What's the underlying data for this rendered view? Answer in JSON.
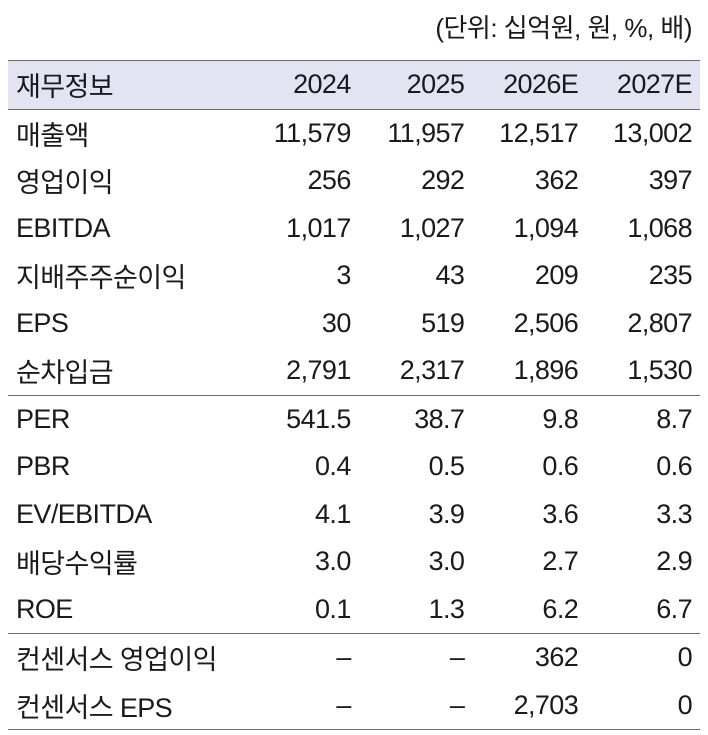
{
  "unit_note": "(단위: 십억원, 원, %, 배)",
  "header": [
    "재무정보",
    "2024",
    "2025",
    "2026E",
    "2027E"
  ],
  "rows": [
    {
      "label": "매출액",
      "values": [
        "11,579",
        "11,957",
        "12,517",
        "13,002"
      ]
    },
    {
      "label": "영업이익",
      "values": [
        "256",
        "292",
        "362",
        "397"
      ]
    },
    {
      "label": "EBITDA",
      "values": [
        "1,017",
        "1,027",
        "1,094",
        "1,068"
      ]
    },
    {
      "label": "지배주주순이익",
      "values": [
        "3",
        "43",
        "209",
        "235"
      ]
    },
    {
      "label": "EPS",
      "values": [
        "30",
        "519",
        "2,506",
        "2,807"
      ]
    },
    {
      "label": "순차입금",
      "values": [
        "2,791",
        "2,317",
        "1,896",
        "1,530"
      ]
    },
    {
      "label": "PER",
      "values": [
        "541.5",
        "38.7",
        "9.8",
        "8.7"
      ]
    },
    {
      "label": "PBR",
      "values": [
        "0.4",
        "0.5",
        "0.6",
        "0.6"
      ]
    },
    {
      "label": "EV/EBITDA",
      "values": [
        "4.1",
        "3.9",
        "3.6",
        "3.3"
      ]
    },
    {
      "label": "배당수익률",
      "values": [
        "3.0",
        "3.0",
        "2.7",
        "2.9"
      ]
    },
    {
      "label": "ROE",
      "values": [
        "0.1",
        "1.3",
        "6.2",
        "6.7"
      ]
    },
    {
      "label": "컨센서스 영업이익",
      "values": [
        "–",
        "–",
        "362",
        "0"
      ]
    },
    {
      "label": "컨센서스 EPS",
      "values": [
        "–",
        "–",
        "2,703",
        "0"
      ]
    }
  ]
}
